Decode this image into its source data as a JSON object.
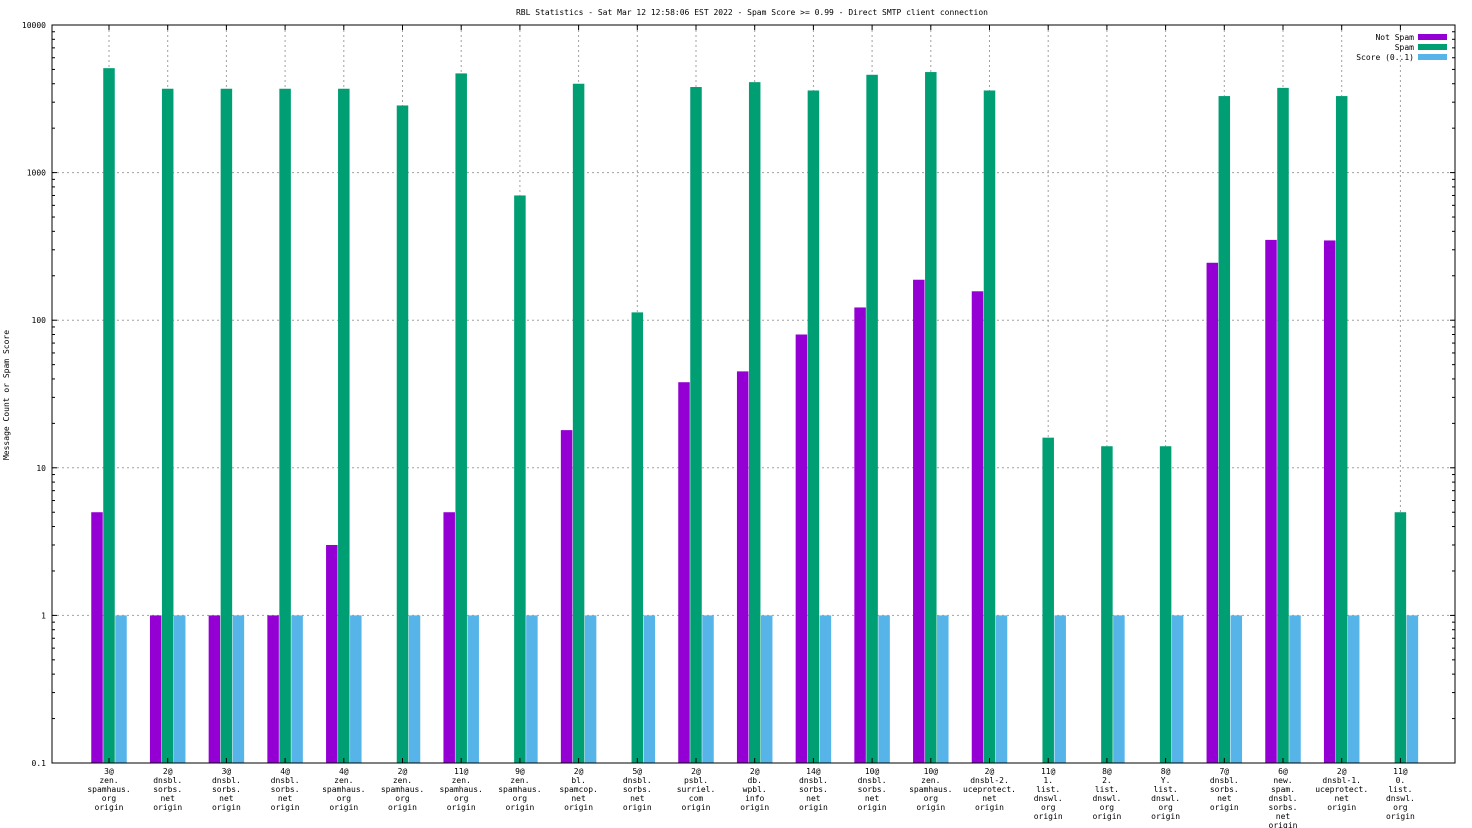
{
  "chart_data": {
    "type": "bar",
    "title": "RBL Statistics - Sat Mar 12 12:58:06 EST 2022 - Spam Score >= 0.99 - Direct SMTP client connection",
    "xlabel": "",
    "ylabel": "Message Count or Spam Score",
    "yscale": "log",
    "ylim": [
      0.1,
      10000
    ],
    "yticks": [
      {
        "value": 0.1,
        "label": "0.1"
      },
      {
        "value": 1,
        "label": "1"
      },
      {
        "value": 10,
        "label": "10"
      },
      {
        "value": 100,
        "label": "100"
      },
      {
        "value": 1000,
        "label": "1000"
      },
      {
        "value": 10000,
        "label": "10000"
      }
    ],
    "grid": true,
    "legend_position": "top-right",
    "categories": [
      [
        "3@",
        "zen.",
        "spamhaus.",
        "org",
        "origin"
      ],
      [
        "2@",
        "dnsbl.",
        "sorbs.",
        "net",
        "origin"
      ],
      [
        "3@",
        "dnsbl.",
        "sorbs.",
        "net",
        "origin"
      ],
      [
        "4@",
        "dnsbl.",
        "sorbs.",
        "net",
        "origin"
      ],
      [
        "4@",
        "zen.",
        "spamhaus.",
        "org",
        "origin"
      ],
      [
        "2@",
        "zen.",
        "spamhaus.",
        "org",
        "origin"
      ],
      [
        "11@",
        "zen.",
        "spamhaus.",
        "org",
        "origin"
      ],
      [
        "9@",
        "zen.",
        "spamhaus.",
        "org",
        "origin"
      ],
      [
        "2@",
        "bl.",
        "spamcop.",
        "net",
        "origin"
      ],
      [
        "5@",
        "dnsbl.",
        "sorbs.",
        "net",
        "origin"
      ],
      [
        "2@",
        "psbl.",
        "surriel.",
        "com",
        "origin"
      ],
      [
        "2@",
        "db.",
        "wpbl.",
        "info",
        "origin"
      ],
      [
        "14@",
        "dnsbl.",
        "sorbs.",
        "net",
        "origin"
      ],
      [
        "10@",
        "dnsbl.",
        "sorbs.",
        "net",
        "origin"
      ],
      [
        "10@",
        "zen.",
        "spamhaus.",
        "org",
        "origin"
      ],
      [
        "2@",
        "dnsbl-2.",
        "uceprotect.",
        "net",
        "origin"
      ],
      [
        "11@",
        "1.",
        "list.",
        "dnswl.",
        "org",
        "origin"
      ],
      [
        "8@",
        "2.",
        "list.",
        "dnswl.",
        "org",
        "origin"
      ],
      [
        "8@",
        "Y.",
        "list.",
        "dnswl.",
        "org",
        "origin"
      ],
      [
        "7@",
        "dnsbl.",
        "sorbs.",
        "net",
        "origin"
      ],
      [
        "6@",
        "new.",
        "spam.",
        "dnsbl.",
        "sorbs.",
        "net",
        "origin"
      ],
      [
        "2@",
        "dnsbl-1.",
        "uceprotect.",
        "net",
        "origin"
      ],
      [
        "11@",
        "0.",
        "list.",
        "dnswl.",
        "org",
        "origin"
      ]
    ],
    "series": [
      {
        "name": "Not Spam",
        "color": "#9400d3",
        "values": [
          5,
          1,
          1,
          1,
          3,
          null,
          5,
          null,
          18,
          null,
          38,
          45,
          80,
          122,
          188,
          157,
          null,
          null,
          null,
          245,
          350,
          347,
          null
        ]
      },
      {
        "name": "Spam",
        "color": "#009e73",
        "values": [
          5100,
          3700,
          3700,
          3700,
          3700,
          2850,
          4700,
          700,
          4000,
          113,
          3800,
          4100,
          3600,
          4600,
          4800,
          3600,
          16,
          14,
          14,
          3300,
          3750,
          3300,
          5
        ]
      },
      {
        "name": "Score (0..1)",
        "color": "#56b4e9",
        "values": [
          1,
          1,
          1,
          1,
          1,
          1,
          1,
          1,
          1,
          1,
          1,
          1,
          1,
          1,
          1,
          1,
          1,
          1,
          1,
          1,
          1,
          1,
          1
        ]
      }
    ]
  }
}
